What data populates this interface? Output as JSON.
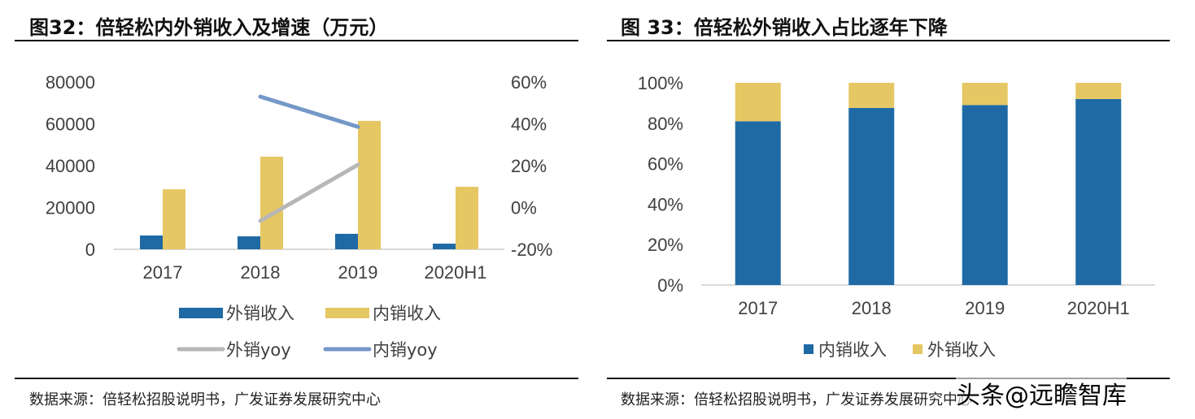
{
  "watermark": "头条@远瞻智库",
  "chart_data": [
    {
      "type": "bar+line",
      "title": "图32：倍轻松内外销收入及增速（万元）",
      "source": "数据来源：倍轻松招股说明书，广发证券发展研究中心",
      "categories": [
        "2017",
        "2018",
        "2019",
        "2020H1"
      ],
      "ylim": [
        0,
        80000
      ],
      "yticks": [
        "0",
        "20000",
        "40000",
        "60000",
        "80000"
      ],
      "y2lim": [
        -20,
        60
      ],
      "y2ticks": [
        "-20%",
        "0%",
        "20%",
        "40%",
        "60%"
      ],
      "series": [
        {
          "name": "外销收入",
          "type": "bar",
          "color": "#1f6aa5",
          "values": [
            6600,
            6200,
            7400,
            2700
          ]
        },
        {
          "name": "内销收入",
          "type": "bar",
          "color": "#e5c763",
          "values": [
            28700,
            44300,
            61400,
            29900
          ]
        },
        {
          "name": "外销yoy",
          "type": "line",
          "axis": "right",
          "color": "#b7b7b7",
          "values": [
            null,
            -6.4,
            20.4,
            null
          ]
        },
        {
          "name": "内销yoy",
          "type": "line",
          "axis": "right",
          "color": "#7498c8",
          "values": [
            null,
            53,
            38.6,
            null
          ]
        }
      ],
      "legend": "bottom"
    },
    {
      "type": "stacked-bar",
      "title": "图 33：倍轻松外销收入占比逐年下降",
      "source": "数据来源：倍轻松招股说明书，广发证券发展研究中心",
      "categories": [
        "2017",
        "2018",
        "2019",
        "2020H1"
      ],
      "ylim": [
        0,
        100
      ],
      "yticks": [
        "0%",
        "20%",
        "40%",
        "60%",
        "80%",
        "100%"
      ],
      "series": [
        {
          "name": "内销收入",
          "color": "#1f6aa5",
          "values": [
            81,
            87.6,
            89,
            92
          ]
        },
        {
          "name": "外销收入",
          "color": "#e5c763",
          "values": [
            19,
            12.4,
            11,
            8
          ]
        }
      ],
      "legend": "bottom"
    }
  ]
}
